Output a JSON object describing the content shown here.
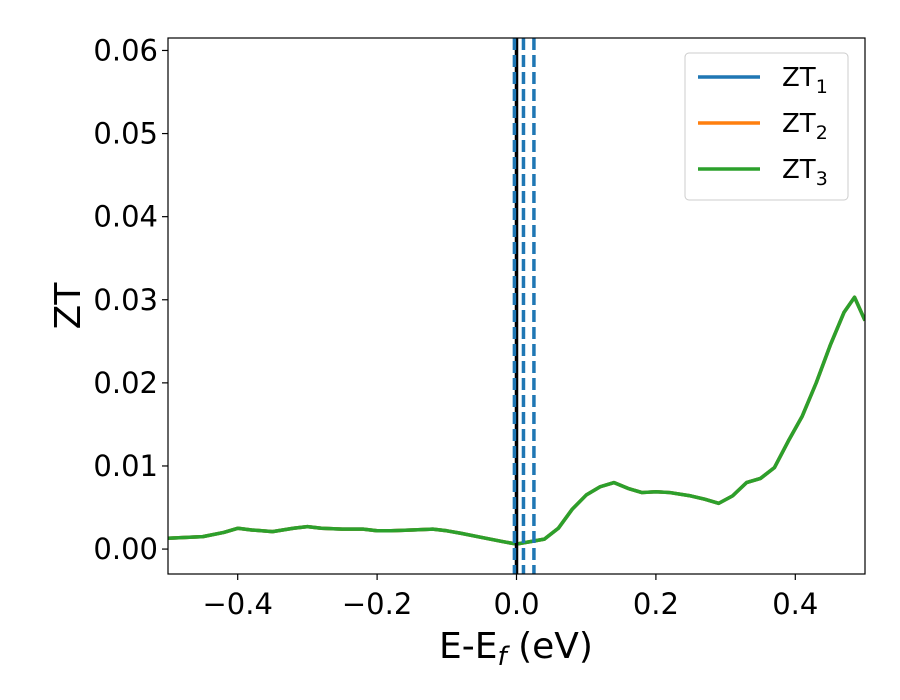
{
  "chart_data": {
    "type": "line",
    "xlabel": "E-E",
    "xlabel_sub": "f",
    "xlabel_unit": " (eV)",
    "ylabel": "ZT",
    "xlim": [
      -0.5,
      0.5
    ],
    "ylim": [
      -0.003,
      0.0615
    ],
    "xticks": [
      -0.4,
      -0.2,
      0.0,
      0.2,
      0.4
    ],
    "xtick_labels": [
      "−0.4",
      "−0.2",
      "0.0",
      "0.2",
      "0.4"
    ],
    "yticks": [
      0.0,
      0.01,
      0.02,
      0.03,
      0.04,
      0.05,
      0.06
    ],
    "ytick_labels": [
      "0.00",
      "0.01",
      "0.02",
      "0.03",
      "0.04",
      "0.05",
      "0.06"
    ],
    "grid": false,
    "legend_position": "top-right",
    "legend": [
      {
        "base": "ZT",
        "sub": "1",
        "color": "#1f77b4"
      },
      {
        "base": "ZT",
        "sub": "2",
        "color": "#ff7f0e"
      },
      {
        "base": "ZT",
        "sub": "3",
        "color": "#2ca02c"
      }
    ],
    "x": [
      -0.5,
      -0.45,
      -0.42,
      -0.4,
      -0.38,
      -0.35,
      -0.32,
      -0.3,
      -0.28,
      -0.25,
      -0.22,
      -0.2,
      -0.18,
      -0.15,
      -0.12,
      -0.1,
      -0.08,
      -0.05,
      -0.02,
      0.0,
      0.02,
      0.04,
      0.06,
      0.08,
      0.1,
      0.12,
      0.14,
      0.16,
      0.18,
      0.2,
      0.22,
      0.25,
      0.27,
      0.29,
      0.31,
      0.33,
      0.35,
      0.37,
      0.39,
      0.41,
      0.43,
      0.45,
      0.47,
      0.485,
      0.5
    ],
    "series": [
      {
        "color": "#1f77b4",
        "values": [
          0.0013,
          0.0015,
          0.002,
          0.0025,
          0.0023,
          0.0021,
          0.0025,
          0.0027,
          0.0025,
          0.0024,
          0.0024,
          0.0022,
          0.0022,
          0.0023,
          0.0024,
          0.0022,
          0.0019,
          0.0014,
          0.0009,
          0.0006,
          0.0009,
          0.0012,
          0.0025,
          0.0048,
          0.0065,
          0.0075,
          0.008,
          0.0073,
          0.0068,
          0.0069,
          0.0068,
          0.0064,
          0.006,
          0.0055,
          0.0064,
          0.008,
          0.0085,
          0.0098,
          0.013,
          0.016,
          0.02,
          0.0245,
          0.0285,
          0.0303,
          0.0275
        ]
      },
      {
        "color": "#ff7f0e",
        "values": [
          0.0013,
          0.0015,
          0.002,
          0.0025,
          0.0023,
          0.0021,
          0.0025,
          0.0027,
          0.0025,
          0.0024,
          0.0024,
          0.0022,
          0.0022,
          0.0023,
          0.0024,
          0.0022,
          0.0019,
          0.0014,
          0.0009,
          0.0006,
          0.0009,
          0.0012,
          0.0025,
          0.0048,
          0.0065,
          0.0075,
          0.008,
          0.0073,
          0.0068,
          0.0069,
          0.0068,
          0.0064,
          0.006,
          0.0055,
          0.0064,
          0.008,
          0.0085,
          0.0098,
          0.013,
          0.016,
          0.02,
          0.0245,
          0.0285,
          0.0303,
          0.0275
        ]
      },
      {
        "color": "#2ca02c",
        "values": [
          0.0013,
          0.0015,
          0.002,
          0.0025,
          0.0023,
          0.0021,
          0.0025,
          0.0027,
          0.0025,
          0.0024,
          0.0024,
          0.0022,
          0.0022,
          0.0023,
          0.0024,
          0.0022,
          0.0019,
          0.0014,
          0.0009,
          0.0006,
          0.0009,
          0.0012,
          0.0025,
          0.0048,
          0.0065,
          0.0075,
          0.008,
          0.0073,
          0.0068,
          0.0069,
          0.0068,
          0.0064,
          0.006,
          0.0055,
          0.0064,
          0.008,
          0.0085,
          0.0098,
          0.013,
          0.016,
          0.02,
          0.0245,
          0.0285,
          0.0303,
          0.0275
        ]
      }
    ],
    "vlines": [
      {
        "x": 0.0,
        "color": "#000000",
        "style": "solid"
      },
      {
        "x": -0.003,
        "color": "#1f77b4",
        "style": "dashed"
      },
      {
        "x": 0.01,
        "color": "#1f77b4",
        "style": "dashed"
      },
      {
        "x": 0.025,
        "color": "#1f77b4",
        "style": "dashed"
      }
    ]
  }
}
